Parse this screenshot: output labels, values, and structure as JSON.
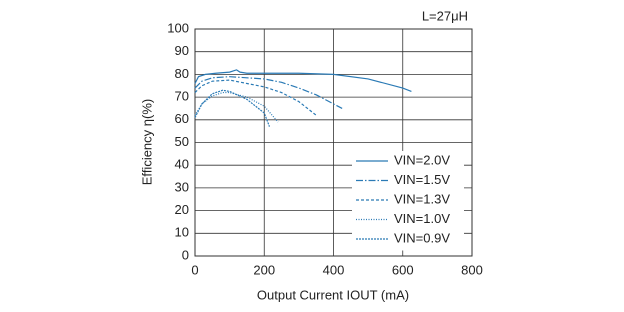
{
  "chart_data": {
    "type": "line",
    "annotation": "L=27μH",
    "x_label": "Output Current IOUT (mA)",
    "y_label": "Efficiency η(%)",
    "xlim": [
      0,
      800
    ],
    "xticks": [
      0,
      200,
      400,
      600,
      800
    ],
    "ylim": [
      0,
      100
    ],
    "yticks": [
      0,
      10,
      20,
      30,
      40,
      50,
      60,
      70,
      80,
      90,
      100
    ],
    "grid": true,
    "legend": "lower right",
    "series": [
      {
        "name": "VIN=2.0V",
        "color": "#2a7ab5",
        "dash": "none",
        "x": [
          0,
          10,
          30,
          60,
          100,
          120,
          130,
          150,
          200,
          300,
          400,
          500,
          600,
          625
        ],
        "values": [
          76,
          79,
          80,
          80.5,
          81,
          82,
          81,
          80.5,
          80.5,
          80.5,
          80,
          78,
          74,
          72.5
        ]
      },
      {
        "name": "VIN=1.5V",
        "color": "#2a7ab5",
        "dash": "7 2 1.5 2",
        "x": [
          0,
          20,
          50,
          100,
          150,
          200,
          250,
          300,
          350,
          400,
          425
        ],
        "values": [
          74,
          77,
          78.5,
          79,
          78.5,
          78,
          76.5,
          74,
          71,
          67,
          65
        ]
      },
      {
        "name": "VIN=1.3V",
        "color": "#2a7ab5",
        "dash": "3 2",
        "x": [
          0,
          20,
          50,
          100,
          150,
          200,
          250,
          300,
          350
        ],
        "values": [
          72,
          75,
          77,
          77.5,
          76,
          74.5,
          72,
          68,
          62
        ]
      },
      {
        "name": "VIN=1.0V",
        "color": "#2a7ab5",
        "dash": "1 1.5",
        "x": [
          0,
          20,
          50,
          80,
          100,
          150,
          200,
          240
        ],
        "values": [
          62,
          67,
          70.5,
          72,
          72,
          70,
          66,
          59
        ]
      },
      {
        "name": "VIN=0.9V",
        "color": "#2a7ab5",
        "dash": "2 1",
        "x": [
          0,
          20,
          50,
          80,
          100,
          150,
          200,
          215
        ],
        "values": [
          61,
          67,
          71.5,
          73,
          72.5,
          69,
          63,
          57
        ]
      }
    ]
  }
}
